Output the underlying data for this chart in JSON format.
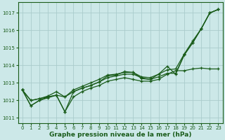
{
  "xlabel": "Graphe pression niveau de la mer (hPa)",
  "background_color": "#cce8e8",
  "grid_color": "#aacccc",
  "line_color": "#1a5c1a",
  "xlim": [
    -0.5,
    23.5
  ],
  "ylim": [
    1010.7,
    1017.6
  ],
  "yticks": [
    1011,
    1012,
    1013,
    1014,
    1015,
    1016,
    1017
  ],
  "xticks": [
    0,
    1,
    2,
    3,
    4,
    5,
    6,
    7,
    8,
    9,
    10,
    11,
    12,
    13,
    14,
    15,
    16,
    17,
    18,
    19,
    20,
    21,
    22,
    23
  ],
  "lines": [
    {
      "x": [
        0,
        1,
        2,
        3,
        4,
        5,
        6,
        7,
        8,
        9,
        10,
        11,
        12,
        13,
        14,
        15,
        16,
        17,
        18,
        19,
        20,
        21,
        22,
        23
      ],
      "y": [
        1012.6,
        1011.7,
        1012.0,
        1012.2,
        1012.3,
        1011.35,
        1012.5,
        1012.7,
        1012.85,
        1013.05,
        1013.4,
        1013.45,
        1013.65,
        1013.6,
        1013.25,
        1013.2,
        1013.5,
        1013.95,
        1013.5,
        1014.6,
        1015.3,
        1016.1,
        1017.0,
        1017.2
      ]
    },
    {
      "x": [
        0,
        1,
        2,
        3,
        4,
        5,
        6,
        7,
        8,
        9,
        10,
        11,
        12,
        13,
        14,
        15,
        16,
        17,
        18,
        19,
        20,
        21,
        22,
        23
      ],
      "y": [
        1012.6,
        1011.7,
        1012.0,
        1012.15,
        1012.3,
        1011.35,
        1012.2,
        1012.5,
        1012.7,
        1012.85,
        1013.1,
        1013.2,
        1013.3,
        1013.2,
        1013.1,
        1013.1,
        1013.2,
        1013.5,
        1013.7,
        1013.7,
        1013.8,
        1013.85,
        1013.8,
        1013.8
      ]
    },
    {
      "x": [
        0,
        1,
        2,
        3,
        4,
        5,
        6,
        7,
        8,
        9,
        10,
        11,
        12,
        13,
        14,
        15,
        16,
        17,
        18,
        19,
        20,
        21,
        22,
        23
      ],
      "y": [
        1012.6,
        1012.0,
        1012.1,
        1012.2,
        1012.3,
        1012.2,
        1012.5,
        1012.7,
        1012.85,
        1013.05,
        1013.3,
        1013.4,
        1013.5,
        1013.5,
        1013.3,
        1013.2,
        1013.35,
        1013.55,
        1013.55,
        1014.6,
        1015.3,
        1016.1,
        1017.0,
        1017.2
      ]
    },
    {
      "x": [
        0,
        1,
        2,
        3,
        4,
        5,
        6,
        7,
        8,
        9,
        10,
        11,
        12,
        13,
        14,
        15,
        16,
        17,
        18,
        19,
        20,
        21,
        22,
        23
      ],
      "y": [
        1012.6,
        1012.0,
        1012.1,
        1012.25,
        1012.5,
        1012.2,
        1012.6,
        1012.8,
        1013.0,
        1013.2,
        1013.45,
        1013.5,
        1013.6,
        1013.6,
        1013.35,
        1013.3,
        1013.5,
        1013.75,
        1013.8,
        1014.65,
        1015.4,
        1016.1,
        1017.0,
        1017.2
      ]
    }
  ],
  "tick_fontsize": 5,
  "xlabel_fontsize": 6.5
}
